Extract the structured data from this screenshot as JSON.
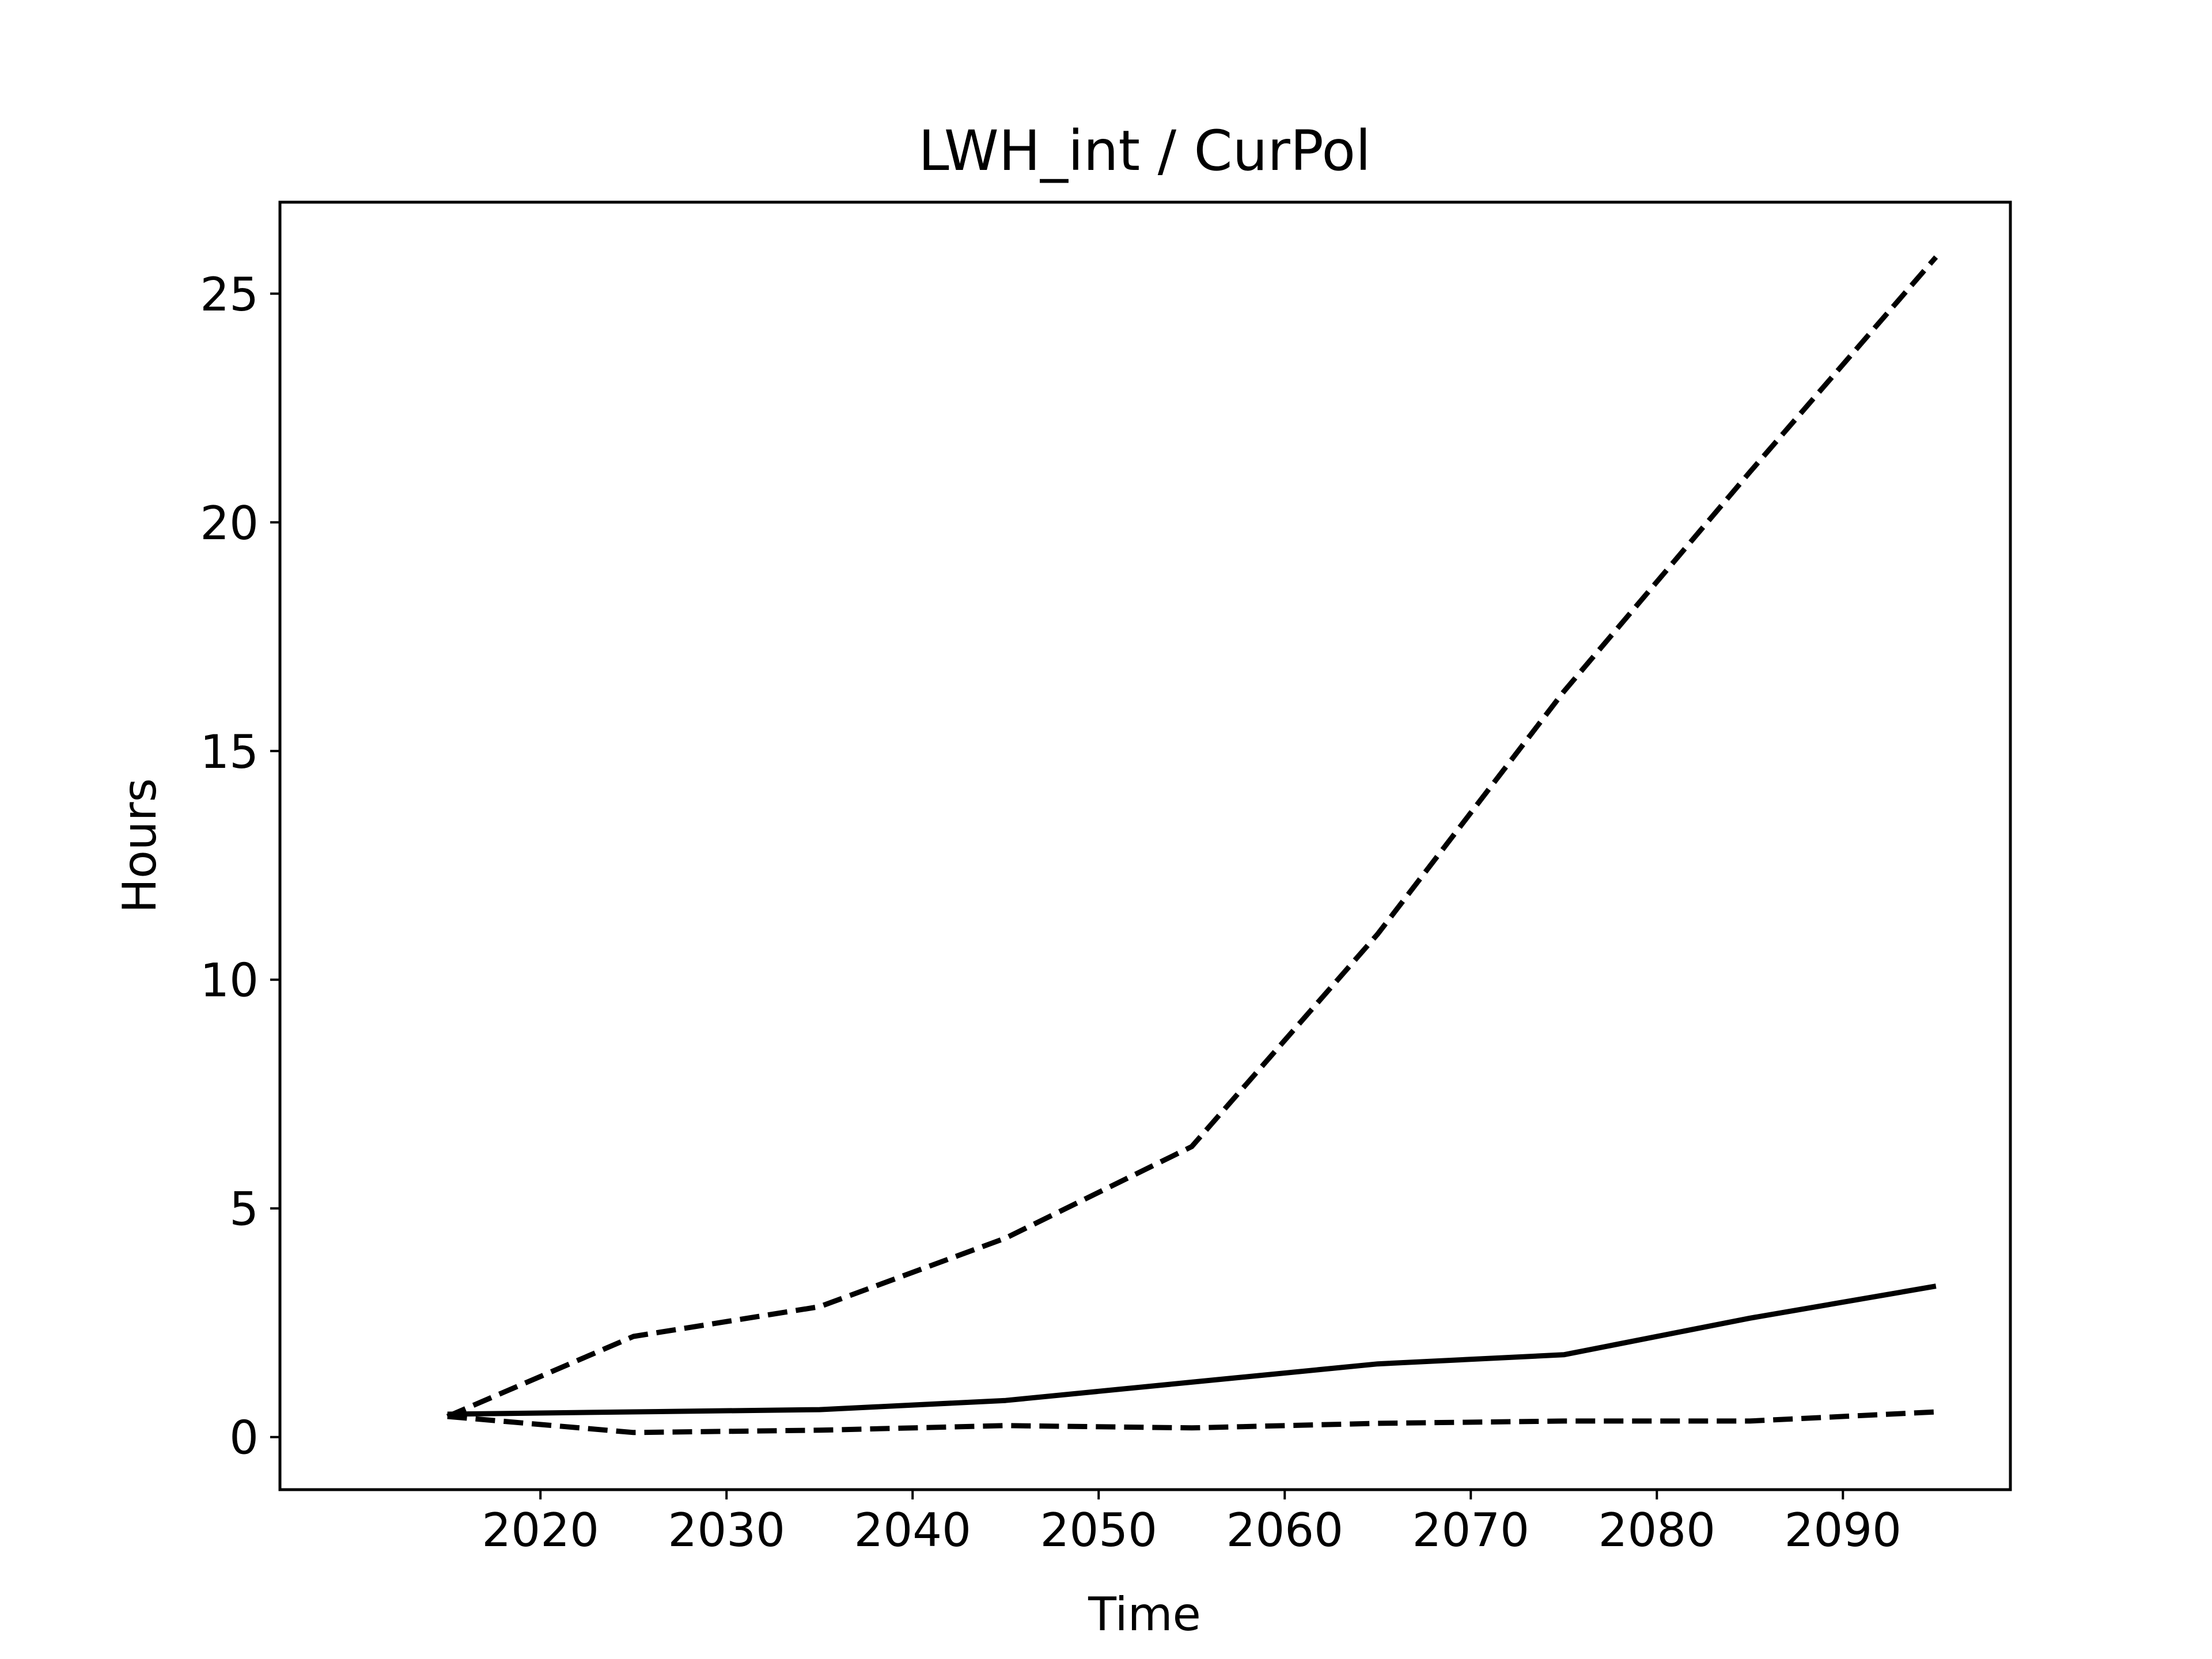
{
  "chart_data": {
    "type": "line",
    "title": "LWH_int / CurPol",
    "xlabel": "Time",
    "ylabel": "Hours",
    "x": [
      2015,
      2025,
      2035,
      2045,
      2055,
      2065,
      2075,
      2085,
      2095
    ],
    "xlim": [
      2006.0,
      2099.0
    ],
    "ylim": [
      -1.15,
      27.0
    ],
    "xticks": [
      2020,
      2030,
      2040,
      2050,
      2060,
      2070,
      2080,
      2090
    ],
    "yticks": [
      0,
      5,
      10,
      15,
      20,
      25
    ],
    "grid": false,
    "line_color": "#000000",
    "series": [
      {
        "style": "solid",
        "values": [
          0.5,
          0.55,
          0.6,
          0.8,
          1.2,
          1.6,
          1.8,
          2.6,
          3.3
        ]
      },
      {
        "style": "dashed",
        "values": [
          0.45,
          2.2,
          2.85,
          4.35,
          6.35,
          11.0,
          16.3,
          21.1,
          25.8
        ]
      },
      {
        "style": "dashed",
        "values": [
          0.45,
          0.1,
          0.15,
          0.25,
          0.2,
          0.3,
          0.35,
          0.35,
          0.55
        ]
      }
    ]
  }
}
